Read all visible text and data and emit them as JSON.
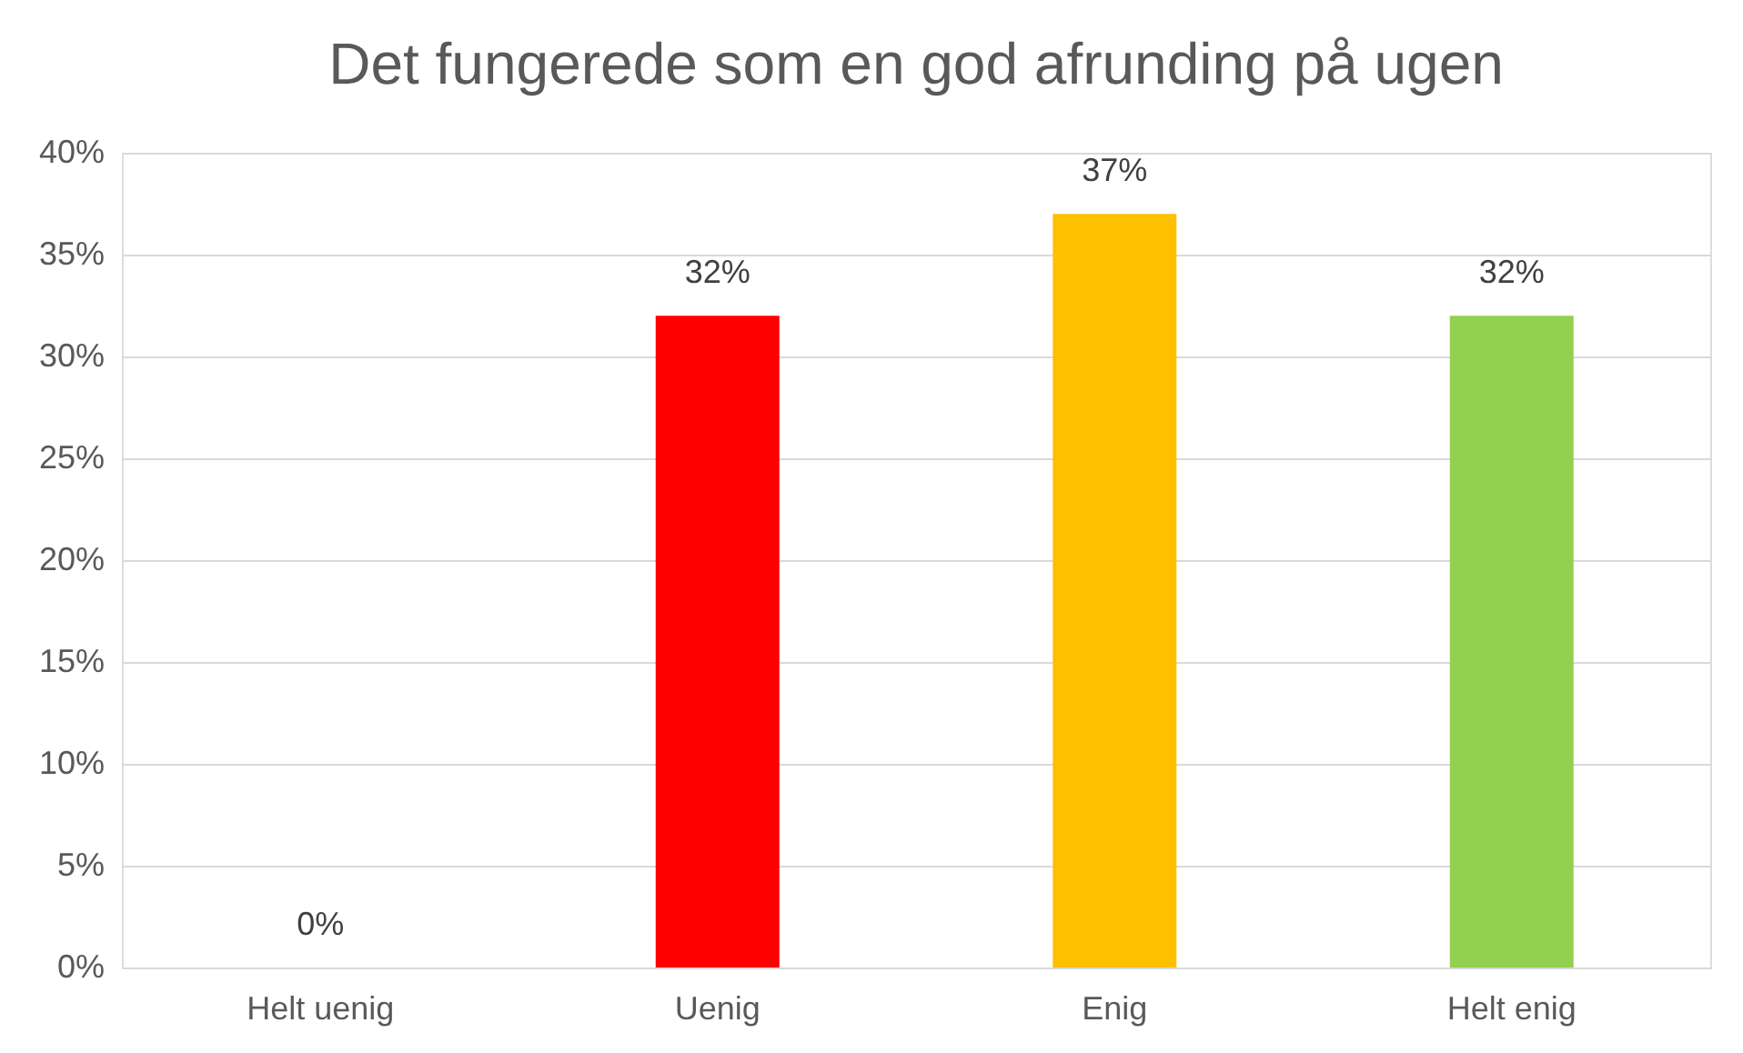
{
  "chart_data": {
    "type": "bar",
    "title": "Det fungerede som en god afrunding på ugen",
    "categories": [
      "Helt uenig",
      "Uenig",
      "Enig",
      "Helt enig"
    ],
    "values": [
      0,
      32,
      37,
      32
    ],
    "colors": [
      "#4472c4",
      "#ff0000",
      "#ffc000",
      "#92d050"
    ],
    "value_labels": [
      "0%",
      "32%",
      "37%",
      "32%"
    ],
    "ylim": [
      0,
      40
    ],
    "yticks": [
      {
        "value": 0,
        "label": "0%"
      },
      {
        "value": 5,
        "label": "5%"
      },
      {
        "value": 10,
        "label": "10%"
      },
      {
        "value": 15,
        "label": "15%"
      },
      {
        "value": 20,
        "label": "20%"
      },
      {
        "value": 25,
        "label": "25%"
      },
      {
        "value": 30,
        "label": "30%"
      },
      {
        "value": 35,
        "label": "35%"
      },
      {
        "value": 40,
        "label": "40%"
      }
    ],
    "grid": "y"
  }
}
